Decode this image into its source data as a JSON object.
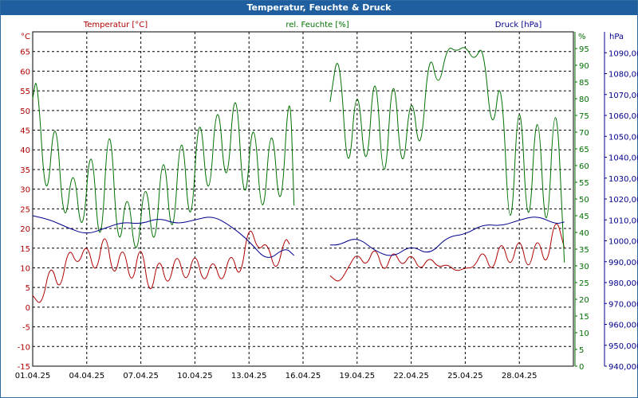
{
  "window": {
    "title": "Temperatur, Feuchte & Druck"
  },
  "colors": {
    "temperature": "#b00000",
    "humidity": "#007000",
    "pressure": "#00008b",
    "grid": "#000000",
    "title_bar": "#1f5f9f"
  },
  "chart_data": {
    "type": "line",
    "title": "Temperatur, Feuchte & Druck",
    "grid": true,
    "x_axis": {
      "range": [
        "2025-04-01",
        "2025-04-30"
      ],
      "tick_labels": [
        "01.04.25",
        "04.04.25",
        "07.04.25",
        "10.04.25",
        "13.04.25",
        "16.04.25",
        "19.04.25",
        "22.04.25",
        "25.04.25",
        "28.04.25"
      ]
    },
    "axes": {
      "temperature": {
        "label": "Temperatur [°C]",
        "unit": "°C",
        "range": [
          -15,
          70
        ],
        "ticks": [
          -15,
          -10,
          -5,
          0,
          5,
          10,
          15,
          20,
          25,
          30,
          35,
          40,
          45,
          50,
          55,
          60,
          65
        ]
      },
      "humidity": {
        "label": "rel. Feuchte [%]",
        "unit": "%",
        "range": [
          0,
          100
        ],
        "ticks": [
          0,
          5,
          10,
          15,
          20,
          25,
          30,
          35,
          40,
          45,
          50,
          55,
          60,
          65,
          70,
          75,
          80,
          85,
          90,
          95
        ]
      },
      "pressure": {
        "label": "Druck [hPa]",
        "unit": "hPa",
        "range": [
          940,
          1100
        ],
        "ticks": [
          940,
          950,
          960,
          970,
          980,
          990,
          1000,
          1010,
          1020,
          1030,
          1040,
          1050,
          1060,
          1070,
          1080,
          1090
        ]
      }
    },
    "series": [
      {
        "name": "Temperatur [°C]",
        "axis": "temperature",
        "points": [
          [
            "2025-04-01 00:00",
            3
          ],
          [
            "2025-04-01 12:00",
            0
          ],
          [
            "2025-04-02 00:00",
            12
          ],
          [
            "2025-04-02 12:00",
            3
          ],
          [
            "2025-04-03 00:00",
            16
          ],
          [
            "2025-04-03 12:00",
            10
          ],
          [
            "2025-04-04 00:00",
            17
          ],
          [
            "2025-04-04 12:00",
            7
          ],
          [
            "2025-04-05 00:00",
            21
          ],
          [
            "2025-04-05 12:00",
            6
          ],
          [
            "2025-04-06 00:00",
            17
          ],
          [
            "2025-04-06 12:00",
            4
          ],
          [
            "2025-04-07 00:00",
            18
          ],
          [
            "2025-04-07 12:00",
            1
          ],
          [
            "2025-04-08 00:00",
            14
          ],
          [
            "2025-04-08 12:00",
            4
          ],
          [
            "2025-04-09 00:00",
            15
          ],
          [
            "2025-04-09 12:00",
            5
          ],
          [
            "2025-04-10 00:00",
            15
          ],
          [
            "2025-04-10 12:00",
            5
          ],
          [
            "2025-04-11 00:00",
            13
          ],
          [
            "2025-04-11 12:00",
            5
          ],
          [
            "2025-04-12 00:00",
            15
          ],
          [
            "2025-04-12 12:00",
            6
          ],
          [
            "2025-04-13 00:00",
            22
          ],
          [
            "2025-04-13 12:00",
            14
          ],
          [
            "2025-04-14 00:00",
            17
          ],
          [
            "2025-04-14 12:00",
            8
          ],
          [
            "2025-04-15 00:00",
            18
          ],
          [
            "2025-04-15 06:00",
            16
          ],
          null,
          [
            "2025-04-17 12:00",
            8
          ],
          [
            "2025-04-18 00:00",
            6
          ],
          [
            "2025-04-18 12:00",
            10
          ],
          [
            "2025-04-19 00:00",
            14
          ],
          [
            "2025-04-19 12:00",
            10
          ],
          [
            "2025-04-20 00:00",
            16
          ],
          [
            "2025-04-20 12:00",
            8
          ],
          [
            "2025-04-21 00:00",
            15
          ],
          [
            "2025-04-21 12:00",
            10
          ],
          [
            "2025-04-22 00:00",
            14
          ],
          [
            "2025-04-22 12:00",
            9
          ],
          [
            "2025-04-23 00:00",
            13
          ],
          [
            "2025-04-23 12:00",
            10
          ],
          [
            "2025-04-24 00:00",
            11
          ],
          [
            "2025-04-24 12:00",
            9
          ],
          [
            "2025-04-25 00:00",
            10
          ],
          [
            "2025-04-25 12:00",
            10
          ],
          [
            "2025-04-26 00:00",
            15
          ],
          [
            "2025-04-26 12:00",
            8
          ],
          [
            "2025-04-27 00:00",
            18
          ],
          [
            "2025-04-27 12:00",
            9
          ],
          [
            "2025-04-28 00:00",
            19
          ],
          [
            "2025-04-28 12:00",
            8
          ],
          [
            "2025-04-29 00:00",
            19
          ],
          [
            "2025-04-29 12:00",
            9
          ],
          [
            "2025-04-30 00:00",
            24
          ],
          [
            "2025-04-30 12:00",
            15
          ]
        ]
      },
      {
        "name": "rel. Feuchte [%]",
        "axis": "humidity",
        "points": [
          [
            "2025-04-01 00:00",
            80
          ],
          [
            "2025-04-01 06:00",
            88
          ],
          [
            "2025-04-01 18:00",
            44
          ],
          [
            "2025-04-02 06:00",
            80
          ],
          [
            "2025-04-02 18:00",
            38
          ],
          [
            "2025-04-03 06:00",
            63
          ],
          [
            "2025-04-03 18:00",
            35
          ],
          [
            "2025-04-04 06:00",
            72
          ],
          [
            "2025-04-04 18:00",
            28
          ],
          [
            "2025-04-05 06:00",
            81
          ],
          [
            "2025-04-05 18:00",
            30
          ],
          [
            "2025-04-06 06:00",
            56
          ],
          [
            "2025-04-06 18:00",
            28
          ],
          [
            "2025-04-07 06:00",
            60
          ],
          [
            "2025-04-07 18:00",
            30
          ],
          [
            "2025-04-08 06:00",
            70
          ],
          [
            "2025-04-08 18:00",
            32
          ],
          [
            "2025-04-09 06:00",
            77
          ],
          [
            "2025-04-09 18:00",
            35
          ],
          [
            "2025-04-10 06:00",
            82
          ],
          [
            "2025-04-10 18:00",
            44
          ],
          [
            "2025-04-11 06:00",
            85
          ],
          [
            "2025-04-11 18:00",
            48
          ],
          [
            "2025-04-12 06:00",
            90
          ],
          [
            "2025-04-12 18:00",
            42
          ],
          [
            "2025-04-13 06:00",
            80
          ],
          [
            "2025-04-13 18:00",
            38
          ],
          [
            "2025-04-14 06:00",
            78
          ],
          [
            "2025-04-14 18:00",
            40
          ],
          [
            "2025-04-15 06:00",
            89
          ],
          [
            "2025-04-15 12:00",
            48
          ],
          null,
          [
            "2025-04-17 12:00",
            79
          ],
          [
            "2025-04-18 00:00",
            97
          ],
          [
            "2025-04-18 12:00",
            52
          ],
          [
            "2025-04-19 00:00",
            89
          ],
          [
            "2025-04-19 12:00",
            53
          ],
          [
            "2025-04-20 00:00",
            95
          ],
          [
            "2025-04-20 12:00",
            47
          ],
          [
            "2025-04-21 00:00",
            94
          ],
          [
            "2025-04-21 12:00",
            53
          ],
          [
            "2025-04-22 00:00",
            85
          ],
          [
            "2025-04-22 12:00",
            60
          ],
          [
            "2025-04-23 00:00",
            96
          ],
          [
            "2025-04-23 12:00",
            82
          ],
          [
            "2025-04-24 00:00",
            96
          ],
          [
            "2025-04-24 12:00",
            94
          ],
          [
            "2025-04-25 00:00",
            96
          ],
          [
            "2025-04-25 12:00",
            91
          ],
          [
            "2025-04-26 00:00",
            97
          ],
          [
            "2025-04-26 12:00",
            67
          ],
          [
            "2025-04-27 00:00",
            91
          ],
          [
            "2025-04-27 12:00",
            30
          ],
          [
            "2025-04-28 00:00",
            90
          ],
          [
            "2025-04-28 12:00",
            32
          ],
          [
            "2025-04-29 00:00",
            86
          ],
          [
            "2025-04-29 12:00",
            30
          ],
          [
            "2025-04-30 00:00",
            89
          ],
          [
            "2025-04-30 12:00",
            31
          ]
        ]
      },
      {
        "name": "Druck [hPa]",
        "axis": "pressure",
        "points": [
          [
            "2025-04-01 00:00",
            1012
          ],
          [
            "2025-04-02 00:00",
            1010
          ],
          [
            "2025-04-03 00:00",
            1006
          ],
          [
            "2025-04-04 00:00",
            1003
          ],
          [
            "2025-04-05 00:00",
            1006
          ],
          [
            "2025-04-06 00:00",
            1009
          ],
          [
            "2025-04-07 00:00",
            1008
          ],
          [
            "2025-04-08 00:00",
            1011
          ],
          [
            "2025-04-09 00:00",
            1008
          ],
          [
            "2025-04-10 00:00",
            1010
          ],
          [
            "2025-04-11 00:00",
            1012
          ],
          [
            "2025-04-12 00:00",
            1007
          ],
          [
            "2025-04-13 00:00",
            1000
          ],
          [
            "2025-04-14 00:00",
            990
          ],
          [
            "2025-04-15 00:00",
            997
          ],
          [
            "2025-04-15 12:00",
            993
          ],
          null,
          [
            "2025-04-17 12:00",
            998
          ],
          [
            "2025-04-18 00:00",
            998
          ],
          [
            "2025-04-19 00:00",
            1002
          ],
          [
            "2025-04-20 00:00",
            995
          ],
          [
            "2025-04-21 00:00",
            992
          ],
          [
            "2025-04-22 00:00",
            998
          ],
          [
            "2025-04-23 00:00",
            993
          ],
          [
            "2025-04-24 00:00",
            1002
          ],
          [
            "2025-04-25 00:00",
            1003
          ],
          [
            "2025-04-26 00:00",
            1008
          ],
          [
            "2025-04-27 00:00",
            1007
          ],
          [
            "2025-04-28 00:00",
            1010
          ],
          [
            "2025-04-29 00:00",
            1012
          ],
          [
            "2025-04-30 00:00",
            1008
          ],
          [
            "2025-04-30 12:00",
            1009
          ]
        ]
      }
    ]
  }
}
